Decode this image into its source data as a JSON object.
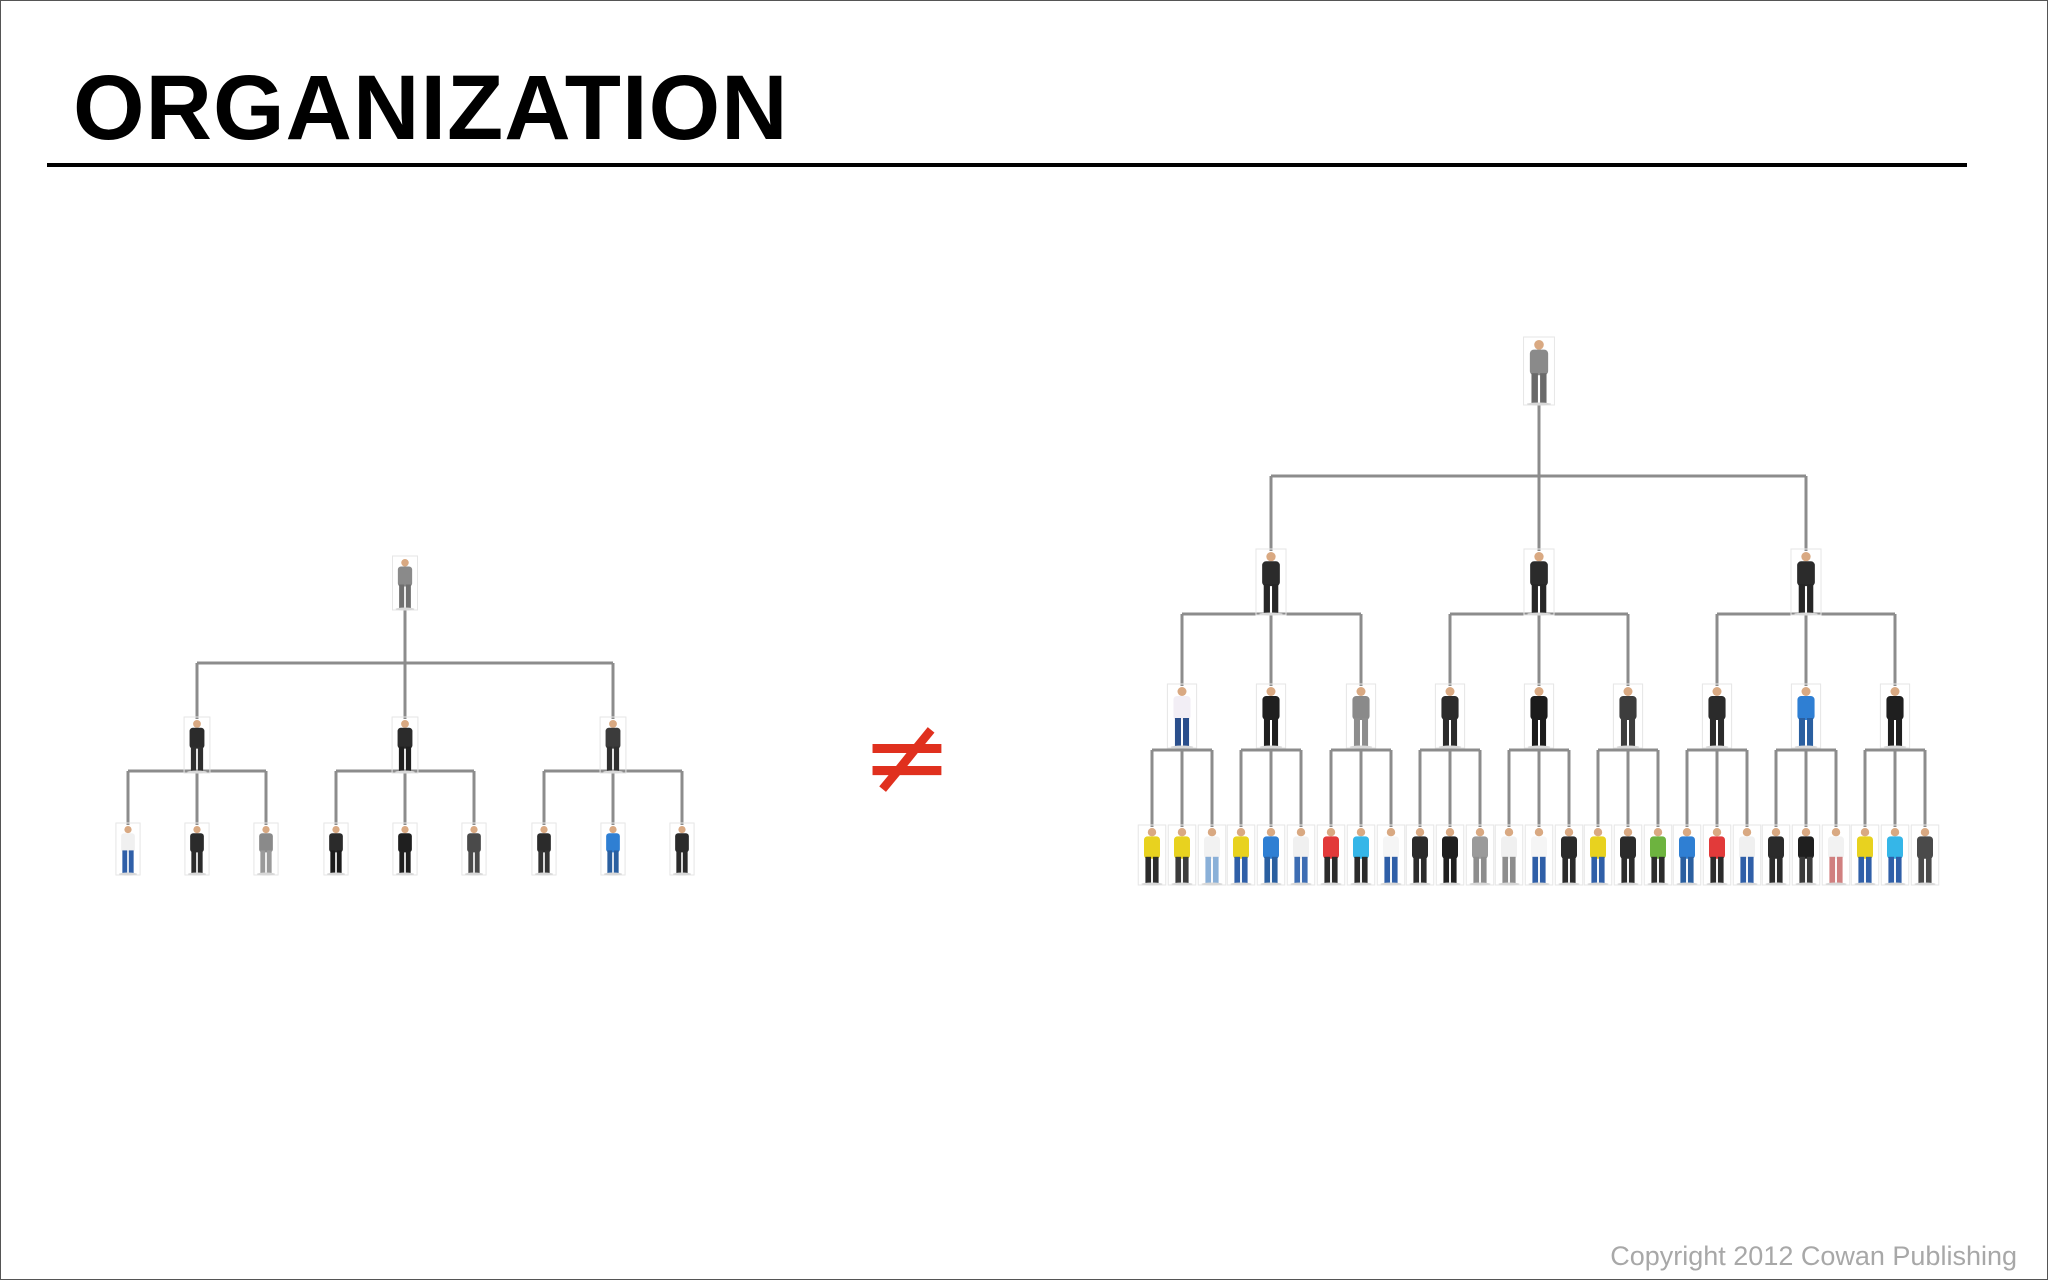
{
  "slide": {
    "title": "ORGANIZATION",
    "operator_symbol": "≠",
    "copyright": "Copyright 2012 Cowan Publishing"
  },
  "diagram": {
    "left_tree": {
      "levels": 3,
      "branching": [
        3,
        3
      ],
      "people_count": 13,
      "color_style": "mostly business attire (dark suits)"
    },
    "right_tree": {
      "levels": 4,
      "branching": [
        3,
        3,
        3
      ],
      "people_count": 40,
      "color_style": "leaders in dark suits; bottom row in colorful casual clothes"
    }
  },
  "colors": {
    "title": "#000000",
    "operator": "#e0301e",
    "connector": "#8c8c8c",
    "copyright": "#a8a8a8",
    "suit": "#2b2b2b",
    "gray_suit": "#8a8a8a",
    "skin": "#d9a982",
    "casual_palette": [
      "#e8d21f",
      "#2f7fd3",
      "#e23a3a",
      "#35b6e8",
      "#f0f0f0",
      "#3a3a3a",
      "#9a9a9a",
      "#6db33f"
    ]
  }
}
